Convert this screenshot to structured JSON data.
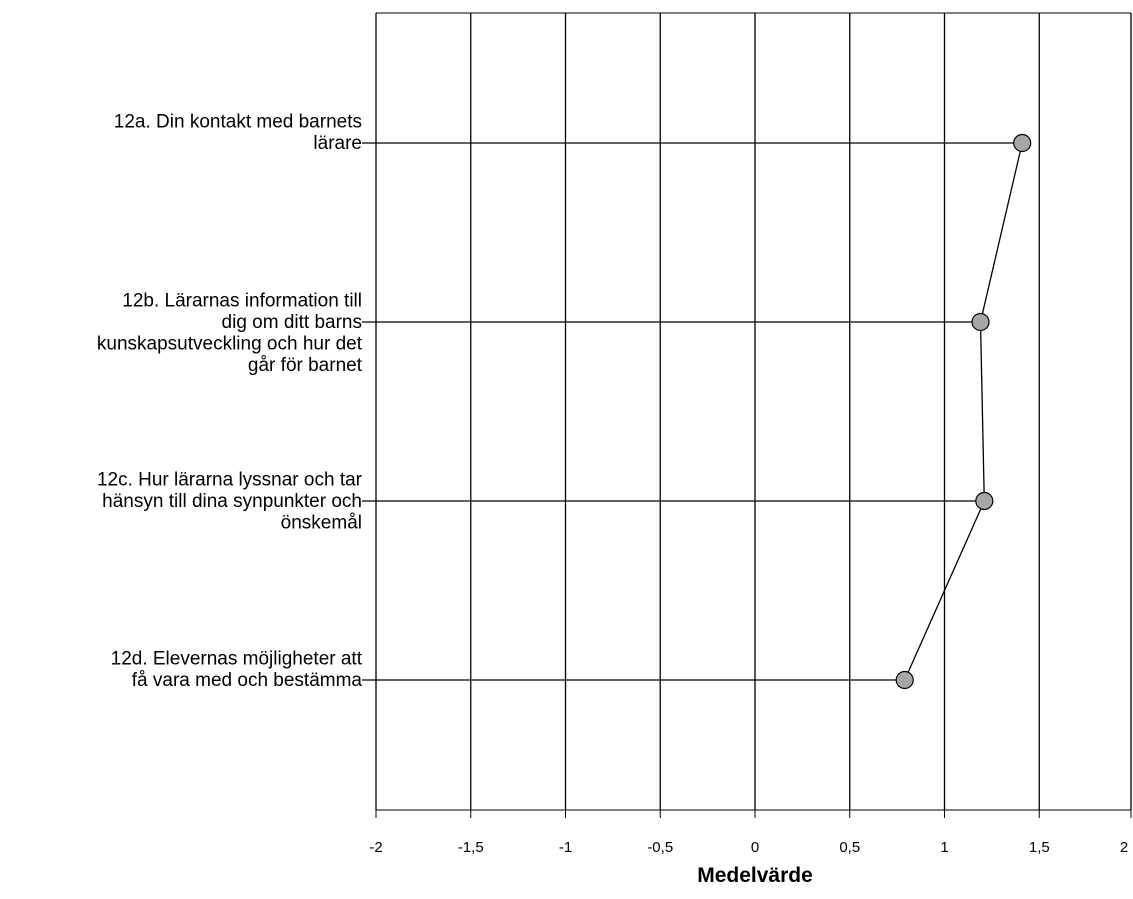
{
  "chart_data": {
    "type": "line",
    "orientation": "horizontal",
    "categories": [
      [
        "12a. Din kontakt med barnets",
        "lärare"
      ],
      [
        "12b. Lärarnas information till",
        "dig om ditt barns",
        "kunskapsutveckling och hur det",
        "går för barnet"
      ],
      [
        "12c. Hur lärarna lyssnar och tar",
        "hänsyn till dina synpunkter och",
        "önskemål"
      ],
      [
        "12d. Elevernas möjligheter att",
        "få vara med och bestämma"
      ]
    ],
    "series": [
      {
        "values": [
          1.41,
          1.19,
          1.21,
          0.79
        ]
      }
    ],
    "xlabel": "Medelvärde",
    "xlim": [
      -2,
      2
    ],
    "xticks": [
      -2,
      -1.5,
      -1,
      -0.5,
      0,
      0.5,
      1,
      1.5,
      2
    ],
    "xtick_labels": [
      "-2",
      "-1,5",
      "-1",
      "-0,5",
      "0",
      "0,5",
      "1",
      "1,5",
      "2"
    ],
    "grid": true,
    "colors": {
      "marker_fill": "#a6a6a6",
      "line": "#000000",
      "grid": "#000000"
    }
  }
}
